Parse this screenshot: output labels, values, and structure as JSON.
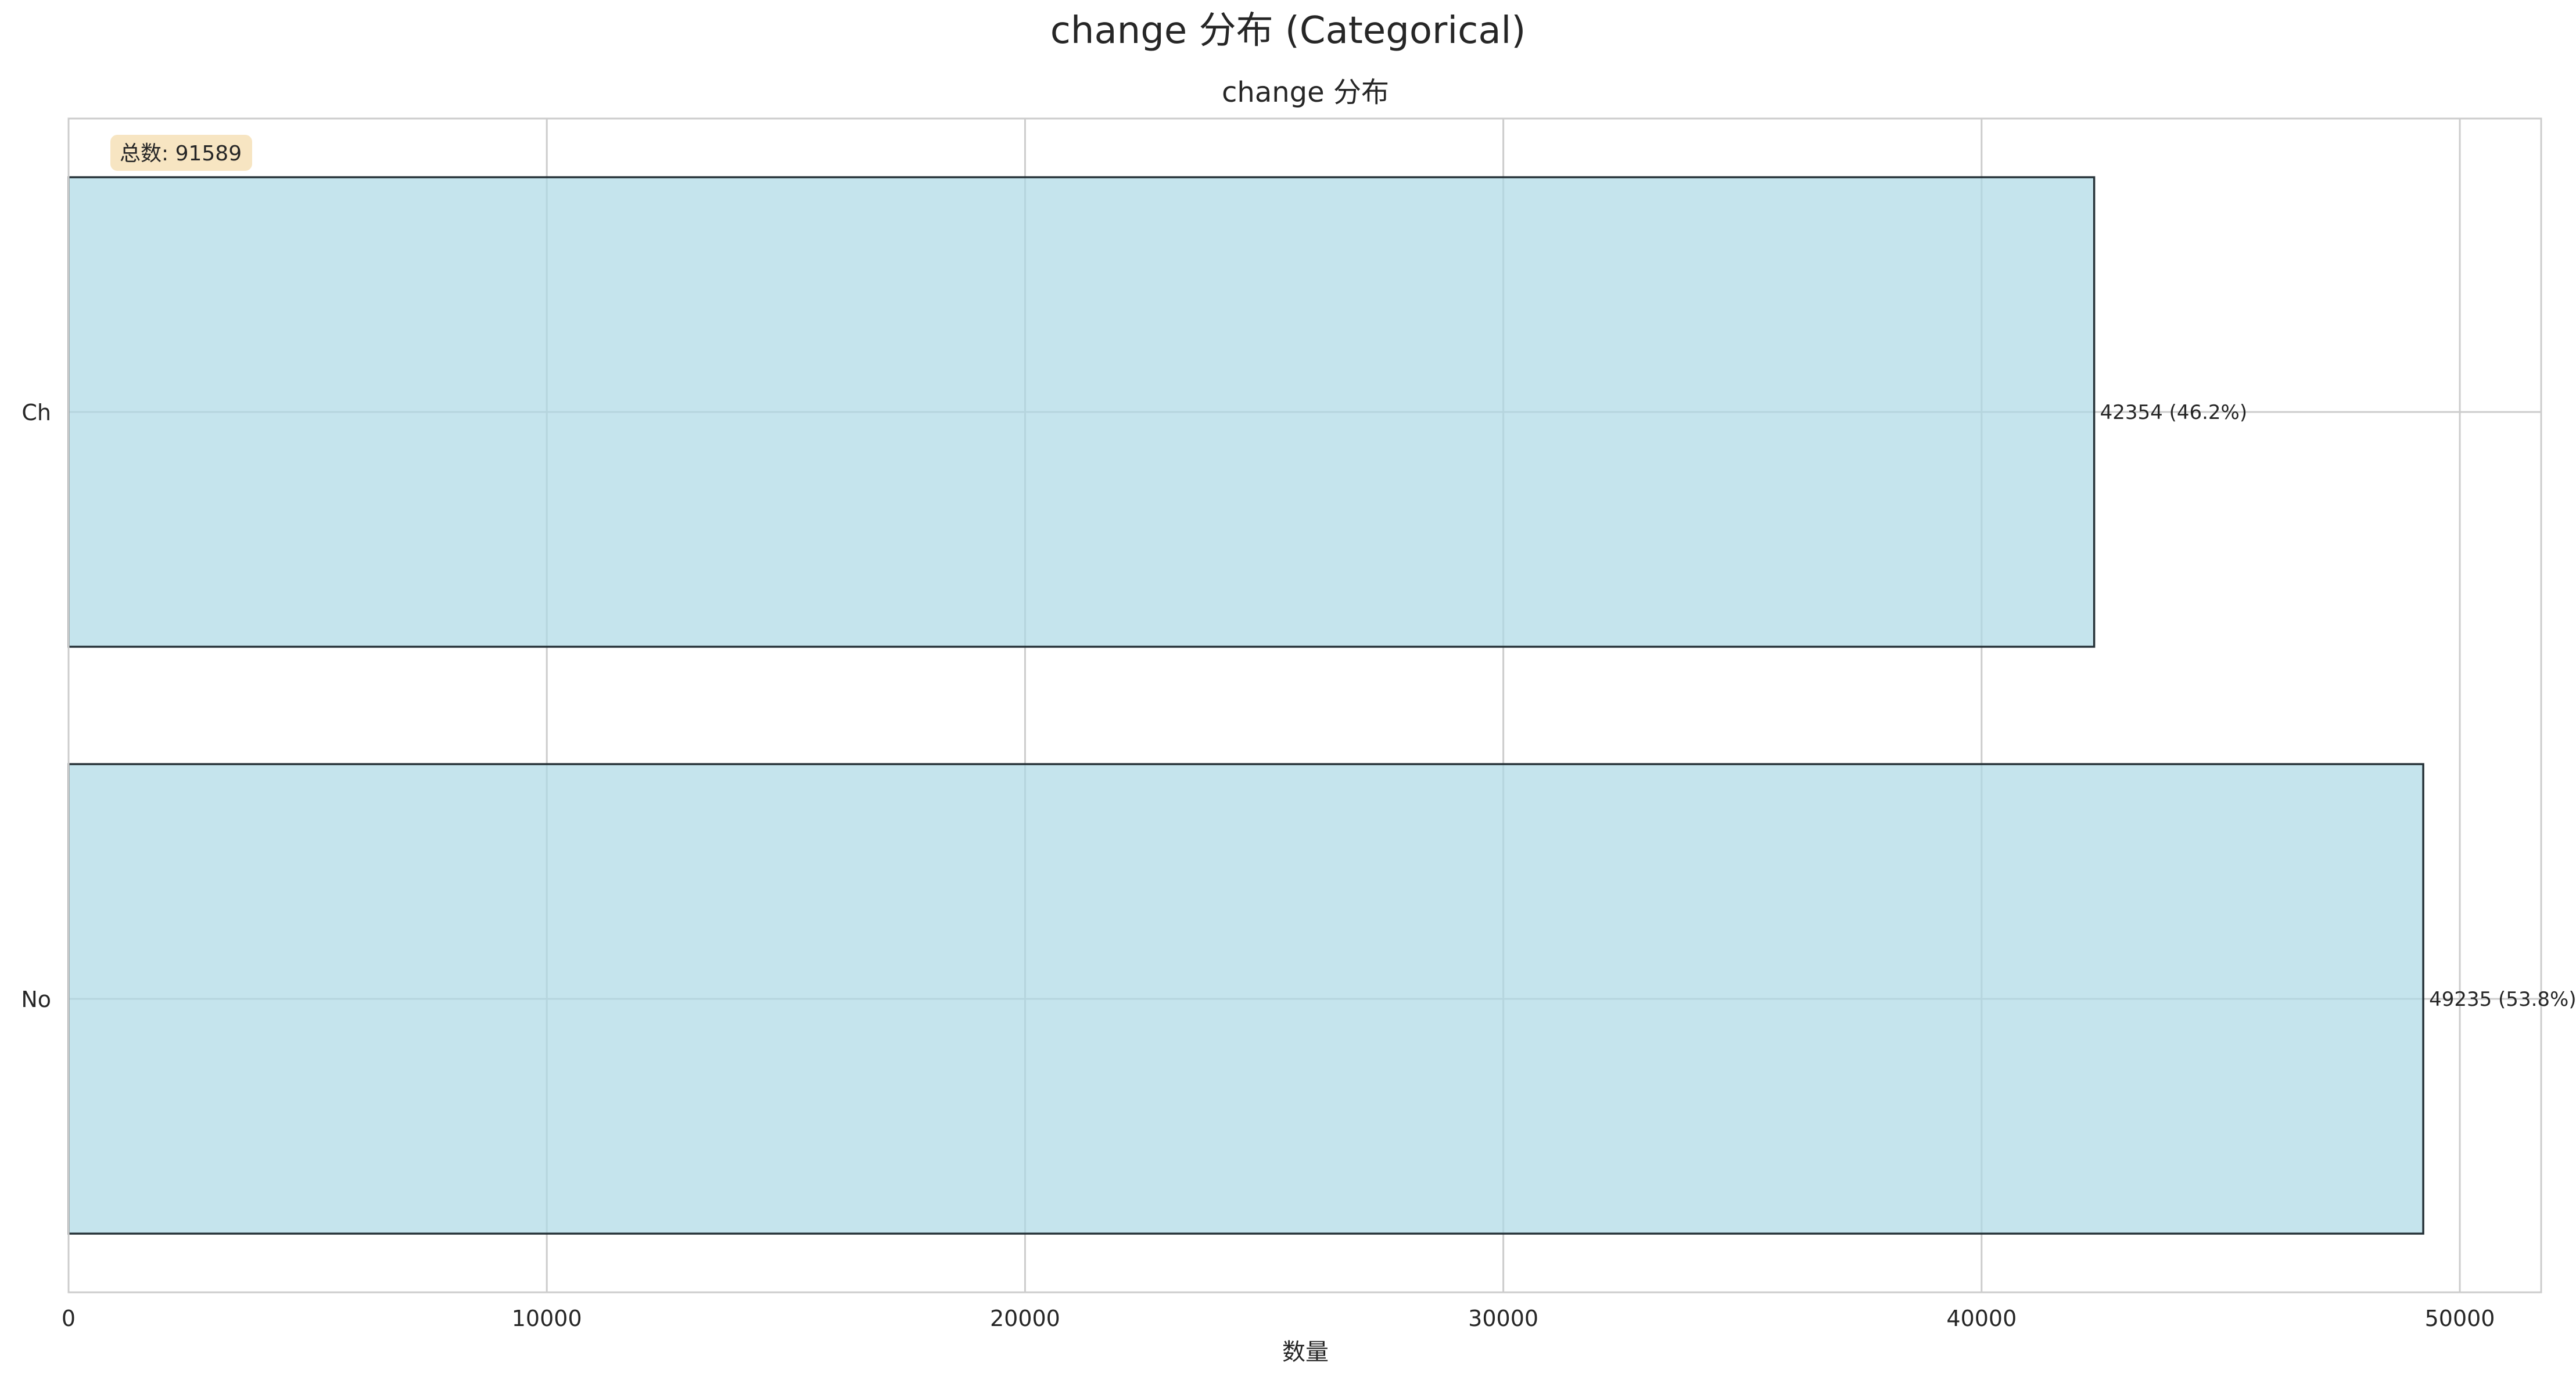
{
  "chart_data": {
    "type": "bar",
    "orientation": "horizontal",
    "suptitle": "change 分布 (Categorical)",
    "title": "change 分布",
    "xlabel": "数量",
    "ylabel": "",
    "categories": [
      "Ch",
      "No"
    ],
    "values": [
      42354,
      49235
    ],
    "data_labels": [
      "42354 (46.2%)",
      "49235 (53.8%)"
    ],
    "xlim": [
      0,
      51700
    ],
    "xticks": [
      0,
      10000,
      20000,
      30000,
      40000,
      50000
    ],
    "xtick_labels": [
      "0",
      "10000",
      "20000",
      "30000",
      "40000",
      "50000"
    ],
    "grid": true,
    "total_label": "总数: 91589",
    "bar_color": "#add8e6",
    "edge_color": "#263238"
  }
}
